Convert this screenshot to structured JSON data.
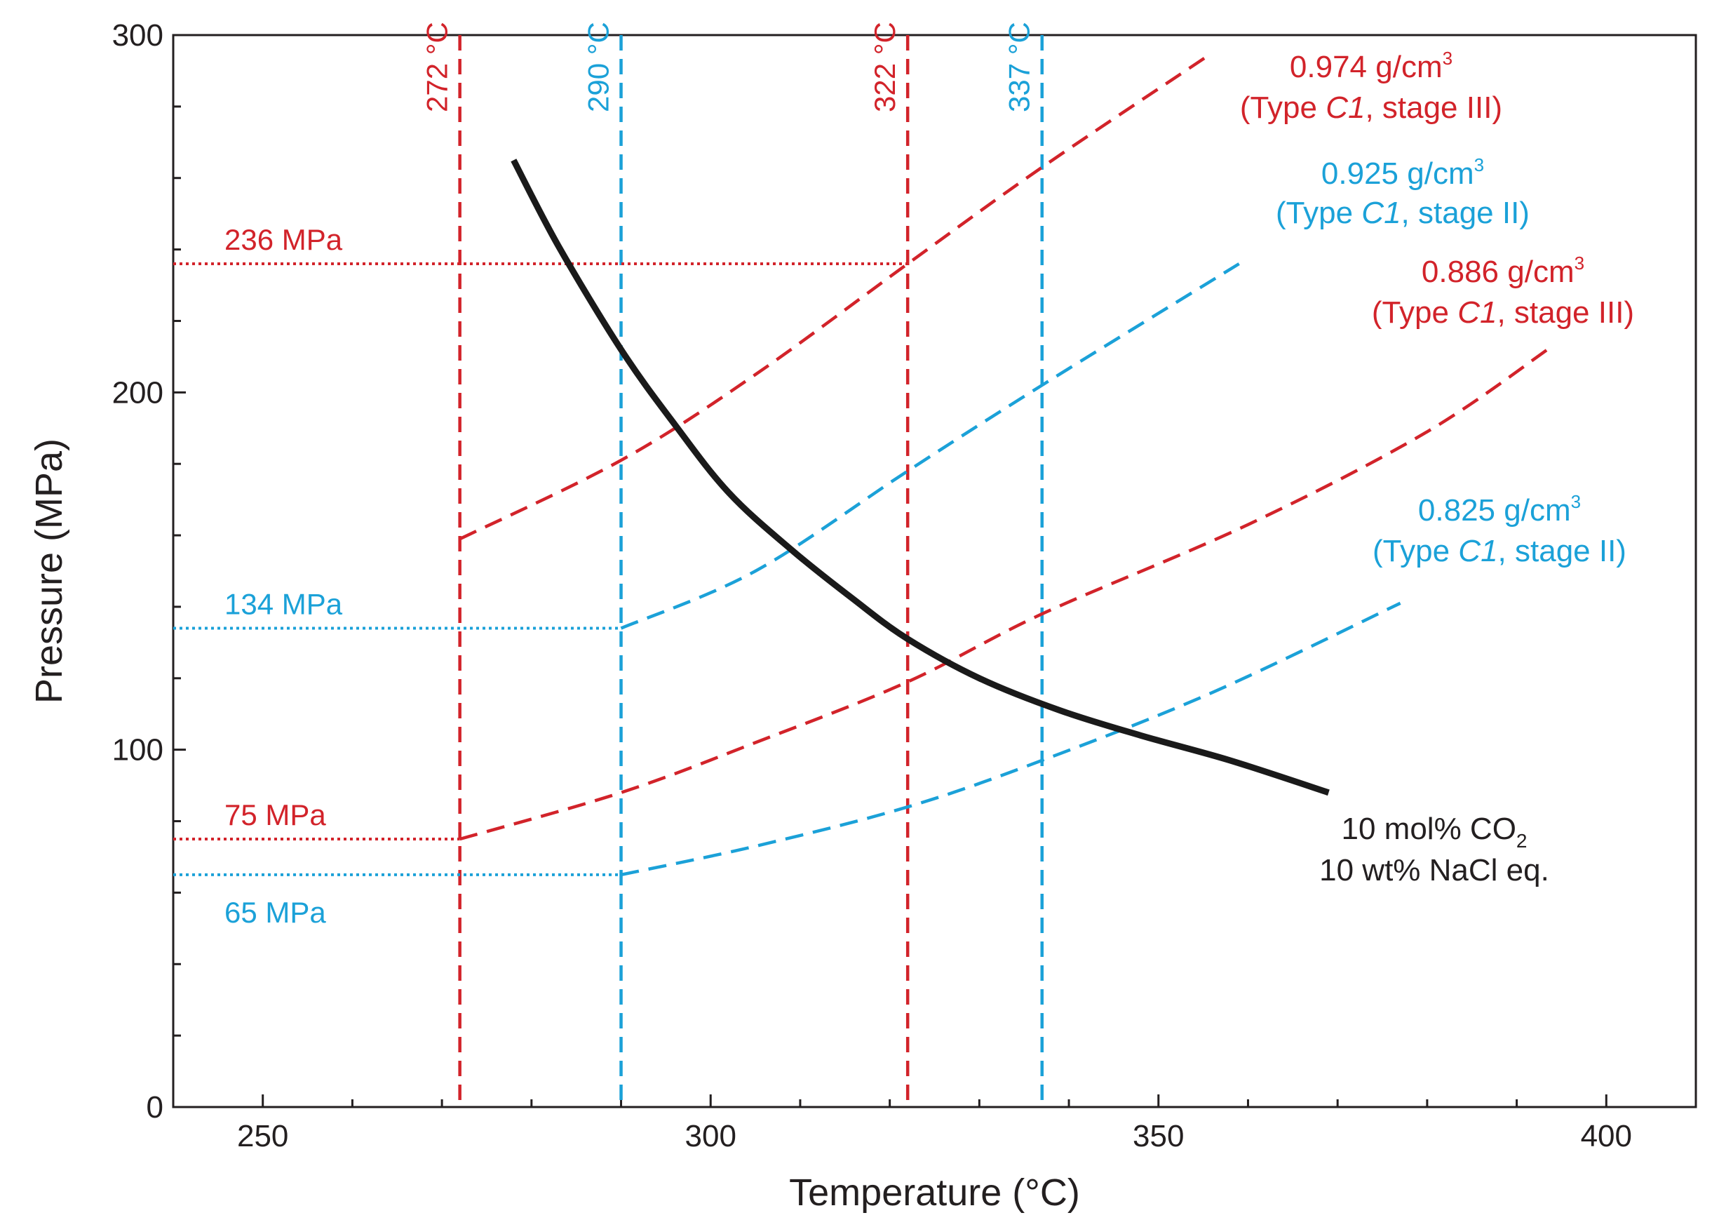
{
  "colors": {
    "red": "#d2232a",
    "blue": "#1ba1d8",
    "black": "#1a1a1a"
  },
  "chart_data": {
    "type": "line",
    "title": "",
    "xlabel": "Temperature (°C)",
    "ylabel": "Pressure (MPa)",
    "xlim": [
      240,
      410
    ],
    "ylim": [
      0,
      300
    ],
    "x_ticks": [
      250,
      300,
      350,
      400
    ],
    "y_ticks": [
      0,
      100,
      200,
      300
    ],
    "x_minor_step": 10,
    "y_minor_step": 20,
    "solvus": {
      "name": "solvus",
      "label_line1": "10 mol% CO",
      "label_sub": "2",
      "label_line2": "10 wt% NaCl eq.",
      "x": [
        278,
        283,
        290,
        296,
        302,
        309,
        316,
        322,
        330,
        339,
        348,
        358,
        369
      ],
      "y": [
        265,
        241,
        212,
        191,
        172,
        156,
        142,
        131,
        120,
        111,
        104,
        97,
        88
      ]
    },
    "isochores": [
      {
        "name": "isochore-0974",
        "color": "red",
        "density_label": "0.974 g/cm",
        "density_sup": "3",
        "type_prefix": "(Type ",
        "type_code": "C1",
        "type_suffix": ", stage III)",
        "x": [
          272,
          290,
          305,
          322,
          337,
          356
        ],
        "y": [
          159,
          181,
          205,
          236,
          263,
          295
        ]
      },
      {
        "name": "isochore-0925",
        "color": "blue",
        "density_label": "0.925 g/cm",
        "density_sup": "3",
        "type_prefix": "(Type ",
        "type_code": "C1",
        "type_suffix": ", stage II)",
        "x": [
          290,
          305,
          322,
          337,
          359
        ],
        "y": [
          134,
          150,
          178,
          202,
          236
        ]
      },
      {
        "name": "isochore-0886",
        "color": "red",
        "density_label": "0.886 g/cm",
        "density_sup": "3",
        "type_prefix": "(Type ",
        "type_code": "C1",
        "type_suffix": ", stage III)",
        "x": [
          272,
          290,
          305,
          322,
          337,
          360,
          380,
          394
        ],
        "y": [
          75,
          88,
          102,
          119,
          138,
          163,
          189,
          213
        ]
      },
      {
        "name": "isochore-0825",
        "color": "blue",
        "density_label": "0.825 g/cm",
        "density_sup": "3",
        "type_prefix": "(Type ",
        "type_code": "C1",
        "type_suffix": ", stage II)",
        "x": [
          290,
          305,
          322,
          337,
          356,
          377
        ],
        "y": [
          65,
          73,
          84,
          97,
          116,
          141
        ]
      }
    ],
    "vertical_lines": [
      {
        "name": "t-272",
        "x": 272,
        "label": "272 °C",
        "color": "red"
      },
      {
        "name": "t-290",
        "x": 290,
        "label": "290 °C",
        "color": "blue"
      },
      {
        "name": "t-322",
        "x": 322,
        "label": "322 °C",
        "color": "red"
      },
      {
        "name": "t-337",
        "x": 337,
        "label": "337 °C",
        "color": "blue"
      }
    ],
    "pressure_markers": [
      {
        "name": "p-236",
        "y": 236,
        "x_end": 322,
        "label": "236 MPa",
        "color": "red",
        "label_side": "above"
      },
      {
        "name": "p-134",
        "y": 134,
        "x_end": 290,
        "label": "134 MPa",
        "color": "blue",
        "label_side": "above"
      },
      {
        "name": "p-75",
        "y": 75,
        "x_end": 272,
        "label": "75 MPa",
        "color": "red",
        "label_side": "above"
      },
      {
        "name": "p-65",
        "y": 65,
        "x_end": 290,
        "label": "65 MPa",
        "color": "blue",
        "label_side": "below"
      }
    ]
  }
}
